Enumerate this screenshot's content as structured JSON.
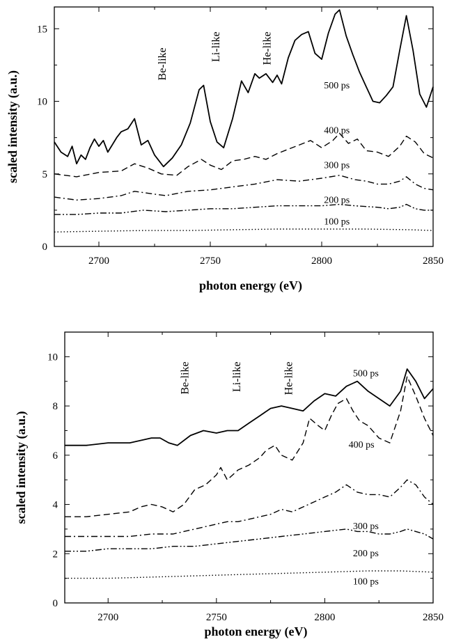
{
  "chart_data": [
    {
      "type": "line",
      "xlabel": "photon energy (eV)",
      "ylabel": "scaled intensity (a.u.)",
      "xlim": [
        2680,
        2850
      ],
      "ylim": [
        0,
        16.5
      ],
      "x_ticks": [
        2700,
        2750,
        2800,
        2850
      ],
      "y_ticks": [
        0,
        5,
        10,
        15
      ],
      "grid": false,
      "ion_labels": [
        {
          "text": "Be-like",
          "x": 2730,
          "y": 13.7
        },
        {
          "text": "Li-like",
          "x": 2754,
          "y": 14.8
        },
        {
          "text": "He-like",
          "x": 2777,
          "y": 14.8
        }
      ],
      "series": [
        {
          "name": "500 ps",
          "label_x": 2801,
          "label_y": 10.9,
          "style": "solid",
          "x": [
            2680,
            2683,
            2686,
            2688,
            2690,
            2692,
            2694,
            2696,
            2698,
            2700,
            2702,
            2704,
            2706,
            2708,
            2710,
            2713,
            2716,
            2719,
            2722,
            2725,
            2729,
            2733,
            2737,
            2741,
            2745,
            2747,
            2750,
            2753,
            2756,
            2760,
            2764,
            2767,
            2770,
            2772,
            2775,
            2778,
            2780,
            2782,
            2785,
            2788,
            2791,
            2794,
            2797,
            2800,
            2803,
            2806,
            2808,
            2811,
            2814,
            2817,
            2820,
            2823,
            2826,
            2829,
            2832,
            2835,
            2838,
            2841,
            2844,
            2847,
            2850
          ],
          "y": [
            7.2,
            6.5,
            6.2,
            6.9,
            5.7,
            6.3,
            6.0,
            6.8,
            7.4,
            6.9,
            7.3,
            6.5,
            7.0,
            7.5,
            7.9,
            8.1,
            8.8,
            7.0,
            7.3,
            6.3,
            5.5,
            6.1,
            7.0,
            8.5,
            10.8,
            11.1,
            8.6,
            7.2,
            6.8,
            8.8,
            11.4,
            10.6,
            11.9,
            11.6,
            11.9,
            11.3,
            11.8,
            11.2,
            13.0,
            14.2,
            14.6,
            14.8,
            13.3,
            12.9,
            14.7,
            16.0,
            16.3,
            14.5,
            13.2,
            12.0,
            11.0,
            10.0,
            9.9,
            10.4,
            11.0,
            13.5,
            15.9,
            13.5,
            10.5,
            9.6,
            11.0
          ]
        },
        {
          "name": "400 ps",
          "label_x": 2801,
          "label_y": 7.8,
          "style": "dashed",
          "x": [
            2680,
            2690,
            2700,
            2710,
            2716,
            2722,
            2728,
            2735,
            2740,
            2746,
            2750,
            2755,
            2760,
            2765,
            2770,
            2775,
            2780,
            2785,
            2790,
            2795,
            2800,
            2805,
            2808,
            2812,
            2816,
            2820,
            2825,
            2830,
            2835,
            2838,
            2842,
            2846,
            2850
          ],
          "y": [
            5.0,
            4.8,
            5.1,
            5.2,
            5.7,
            5.4,
            5.0,
            4.9,
            5.5,
            6.0,
            5.6,
            5.3,
            5.9,
            6.0,
            6.2,
            6.0,
            6.4,
            6.7,
            7.0,
            7.3,
            6.8,
            7.3,
            7.8,
            7.1,
            7.4,
            6.6,
            6.5,
            6.2,
            6.9,
            7.6,
            7.2,
            6.4,
            6.1
          ]
        },
        {
          "name": "300 ps",
          "label_x": 2801,
          "label_y": 5.4,
          "style": "dashdot",
          "x": [
            2680,
            2690,
            2700,
            2710,
            2716,
            2725,
            2730,
            2740,
            2750,
            2760,
            2770,
            2780,
            2790,
            2800,
            2808,
            2815,
            2820,
            2825,
            2830,
            2835,
            2838,
            2842,
            2846,
            2850
          ],
          "y": [
            3.4,
            3.2,
            3.3,
            3.5,
            3.8,
            3.6,
            3.5,
            3.8,
            3.9,
            4.1,
            4.3,
            4.6,
            4.5,
            4.7,
            4.9,
            4.6,
            4.5,
            4.3,
            4.3,
            4.5,
            4.8,
            4.3,
            4.0,
            3.9
          ]
        },
        {
          "name": "200 ps",
          "label_x": 2801,
          "label_y": 3.0,
          "style": "dashdotdot",
          "x": [
            2680,
            2690,
            2700,
            2710,
            2720,
            2730,
            2740,
            2750,
            2760,
            2770,
            2780,
            2790,
            2800,
            2808,
            2815,
            2825,
            2830,
            2835,
            2838,
            2842,
            2846,
            2850
          ],
          "y": [
            2.2,
            2.2,
            2.3,
            2.3,
            2.5,
            2.4,
            2.5,
            2.6,
            2.6,
            2.7,
            2.8,
            2.8,
            2.8,
            2.9,
            2.8,
            2.7,
            2.6,
            2.7,
            2.9,
            2.6,
            2.5,
            2.5
          ]
        },
        {
          "name": "100 ps",
          "label_x": 2801,
          "label_y": 1.5,
          "style": "dotted",
          "x": [
            2680,
            2700,
            2720,
            2740,
            2760,
            2780,
            2800,
            2820,
            2840,
            2850
          ],
          "y": [
            1.0,
            1.05,
            1.1,
            1.1,
            1.15,
            1.2,
            1.2,
            1.2,
            1.15,
            1.1
          ]
        }
      ]
    },
    {
      "type": "line",
      "xlabel": "photon energy (eV)",
      "ylabel": "scaled intensity (a.u.)",
      "xlim": [
        2680,
        2850
      ],
      "ylim": [
        0,
        11
      ],
      "x_ticks": [
        2700,
        2750,
        2800,
        2850
      ],
      "y_ticks": [
        0,
        2,
        4,
        6,
        8,
        10
      ],
      "grid": false,
      "ion_labels": [
        {
          "text": "Be-like",
          "x": 2737,
          "y": 9.8
        },
        {
          "text": "Li-like",
          "x": 2761,
          "y": 9.8
        },
        {
          "text": "He-like",
          "x": 2785,
          "y": 9.8
        }
      ],
      "series": [
        {
          "name": "500 ps",
          "label_x": 2813,
          "label_y": 9.2,
          "style": "solid",
          "x": [
            2680,
            2690,
            2700,
            2710,
            2720,
            2724,
            2728,
            2732,
            2738,
            2744,
            2750,
            2755,
            2760,
            2765,
            2770,
            2775,
            2780,
            2785,
            2790,
            2795,
            2800,
            2805,
            2810,
            2815,
            2820,
            2825,
            2830,
            2835,
            2838,
            2842,
            2846,
            2850
          ],
          "y": [
            6.4,
            6.4,
            6.5,
            6.5,
            6.7,
            6.7,
            6.5,
            6.4,
            6.8,
            7.0,
            6.9,
            7.0,
            7.0,
            7.3,
            7.6,
            7.9,
            8.0,
            7.9,
            7.8,
            8.2,
            8.5,
            8.4,
            8.8,
            9.0,
            8.6,
            8.3,
            8.0,
            8.6,
            9.5,
            9.0,
            8.3,
            8.7
          ]
        },
        {
          "name": "400 ps",
          "label_x": 2811,
          "label_y": 6.3,
          "style": "dashed",
          "x": [
            2680,
            2690,
            2700,
            2710,
            2715,
            2720,
            2725,
            2730,
            2735,
            2740,
            2745,
            2750,
            2752,
            2755,
            2760,
            2765,
            2770,
            2773,
            2777,
            2780,
            2785,
            2790,
            2793,
            2797,
            2800,
            2803,
            2806,
            2810,
            2813,
            2816,
            2820,
            2825,
            2830,
            2835,
            2838,
            2842,
            2846,
            2850
          ],
          "y": [
            3.5,
            3.5,
            3.6,
            3.7,
            3.9,
            4.0,
            3.9,
            3.7,
            4.0,
            4.6,
            4.8,
            5.2,
            5.5,
            5.0,
            5.4,
            5.6,
            5.9,
            6.2,
            6.4,
            6.0,
            5.8,
            6.5,
            7.5,
            7.2,
            7.0,
            7.6,
            8.1,
            8.3,
            7.8,
            7.4,
            7.2,
            6.7,
            6.5,
            7.8,
            9.2,
            8.4,
            7.5,
            6.8
          ]
        },
        {
          "name": "300 ps",
          "label_x": 2813,
          "label_y": 3.0,
          "style": "dashdot",
          "x": [
            2680,
            2690,
            2700,
            2710,
            2720,
            2730,
            2740,
            2750,
            2755,
            2760,
            2765,
            2770,
            2775,
            2780,
            2785,
            2790,
            2795,
            2800,
            2805,
            2810,
            2815,
            2820,
            2825,
            2830,
            2835,
            2838,
            2842,
            2846,
            2850
          ],
          "y": [
            2.7,
            2.7,
            2.7,
            2.7,
            2.8,
            2.8,
            3.0,
            3.2,
            3.3,
            3.3,
            3.4,
            3.5,
            3.6,
            3.8,
            3.7,
            3.9,
            4.1,
            4.3,
            4.5,
            4.8,
            4.5,
            4.4,
            4.4,
            4.3,
            4.7,
            5.0,
            4.8,
            4.3,
            4.0
          ]
        },
        {
          "name": "200 ps",
          "label_x": 2813,
          "label_y": 1.9,
          "style": "dashdotdot",
          "x": [
            2680,
            2690,
            2700,
            2710,
            2720,
            2730,
            2740,
            2750,
            2760,
            2770,
            2780,
            2790,
            2800,
            2810,
            2815,
            2820,
            2825,
            2830,
            2835,
            2838,
            2842,
            2846,
            2850
          ],
          "y": [
            2.1,
            2.1,
            2.2,
            2.2,
            2.2,
            2.3,
            2.3,
            2.4,
            2.5,
            2.6,
            2.7,
            2.8,
            2.9,
            3.0,
            2.9,
            2.9,
            2.8,
            2.8,
            2.9,
            3.0,
            2.9,
            2.8,
            2.6
          ]
        },
        {
          "name": "100 ps",
          "label_x": 2813,
          "label_y": 0.75,
          "style": "dotted",
          "x": [
            2680,
            2700,
            2720,
            2740,
            2760,
            2780,
            2800,
            2820,
            2835,
            2850
          ],
          "y": [
            1.0,
            1.0,
            1.05,
            1.1,
            1.15,
            1.2,
            1.25,
            1.3,
            1.3,
            1.25
          ]
        }
      ]
    }
  ]
}
